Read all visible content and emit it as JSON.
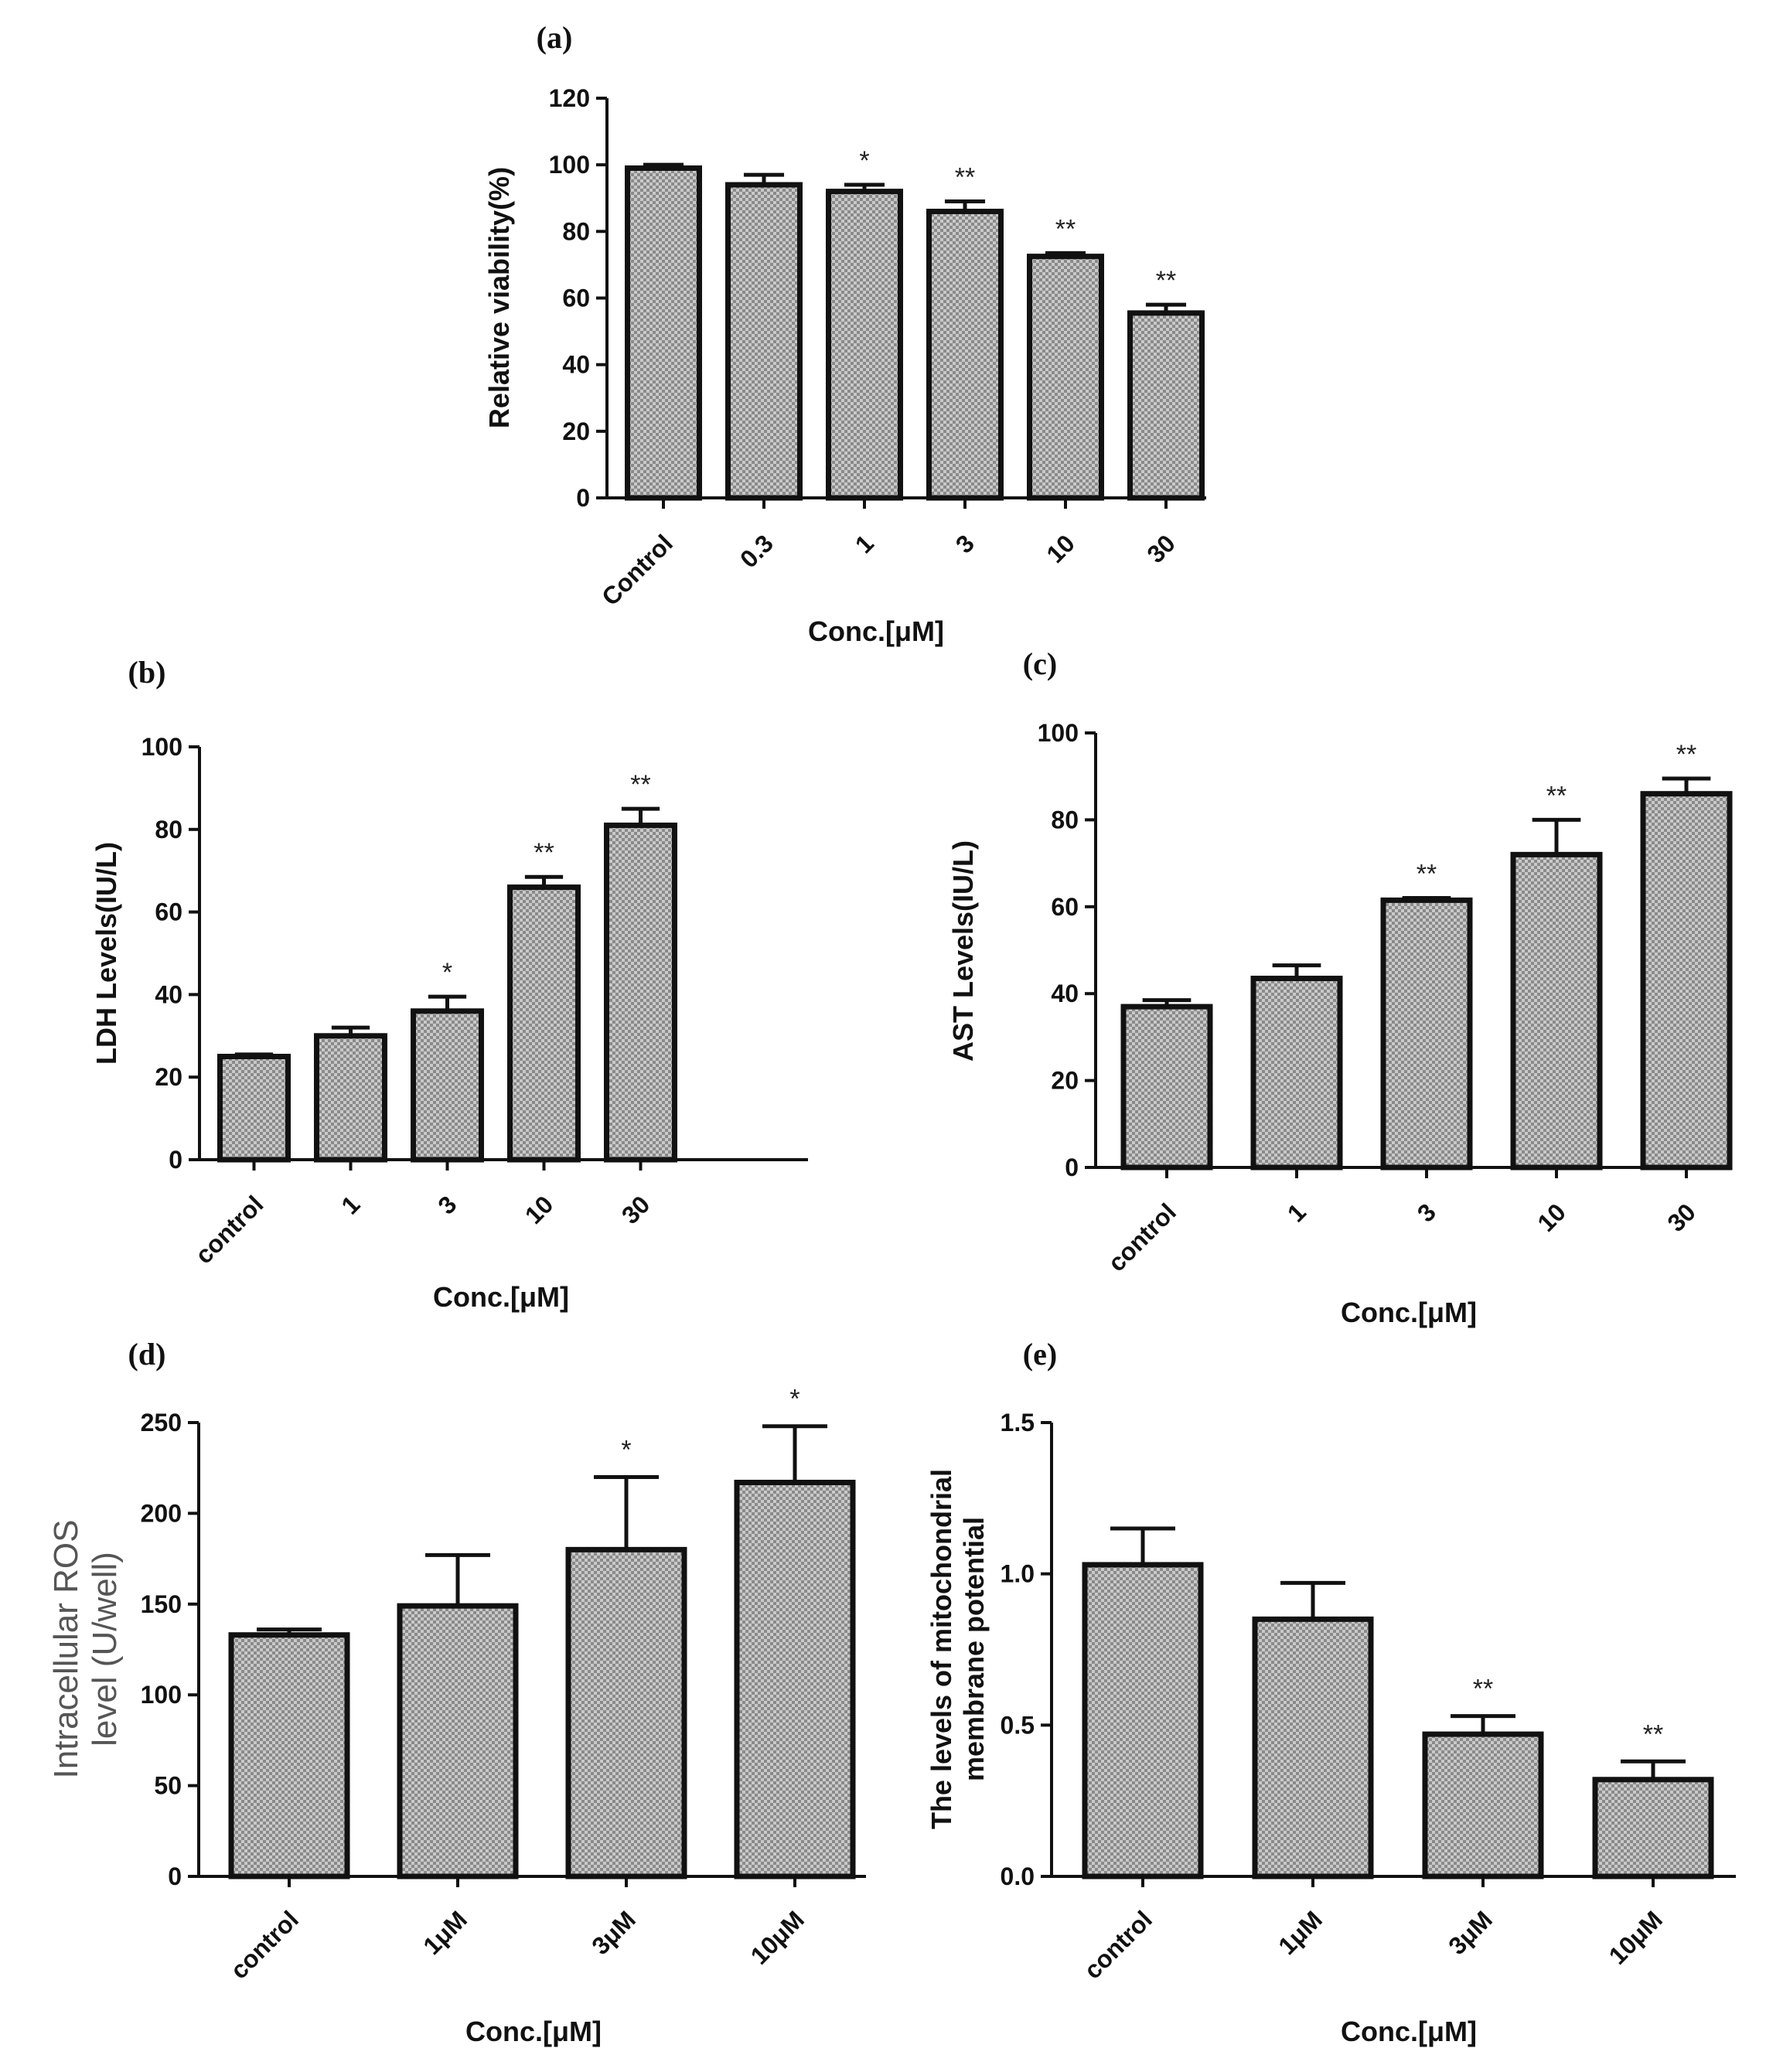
{
  "chart_data": [
    {
      "type": "bar",
      "panel": "(a)",
      "categories": [
        "Control",
        "0.3",
        "1",
        "3",
        "10",
        "30"
      ],
      "values": [
        99,
        94,
        92,
        86,
        72.5,
        55.5
      ],
      "errors": [
        1,
        3,
        2,
        3,
        1,
        2.5
      ],
      "significance": [
        "",
        "",
        "*",
        "**",
        "**",
        "**"
      ],
      "ylabel": [
        "Relative viability(%)"
      ],
      "xlabel": "Conc.[μM]",
      "ylim": [
        0,
        120
      ],
      "yticks": [
        0,
        20,
        40,
        60,
        80,
        100,
        120
      ]
    },
    {
      "type": "bar",
      "panel": "(b)",
      "categories": [
        "control",
        "1",
        "3",
        "10",
        "30"
      ],
      "values": [
        25,
        30,
        36,
        66,
        81
      ],
      "errors": [
        0.5,
        2,
        3.5,
        2.5,
        4
      ],
      "significance": [
        "",
        "",
        "*",
        "**",
        "**"
      ],
      "ylabel": [
        "LDH   Levels(IU/L)"
      ],
      "xlabel": "Conc.[μM]",
      "ylim": [
        0,
        100
      ],
      "yticks": [
        0,
        20,
        40,
        60,
        80,
        100
      ]
    },
    {
      "type": "bar",
      "panel": "(c)",
      "categories": [
        "control",
        "1",
        "3",
        "10",
        "30"
      ],
      "values": [
        37,
        43.5,
        61.5,
        72,
        86
      ],
      "errors": [
        1.5,
        3,
        0.5,
        8,
        3.5
      ],
      "significance": [
        "",
        "",
        "**",
        "**",
        "**"
      ],
      "ylabel": [
        "AST   Levels(IU/L)"
      ],
      "xlabel": "Conc.[μM]",
      "ylim": [
        0,
        100
      ],
      "yticks": [
        0,
        20,
        40,
        60,
        80,
        100
      ]
    },
    {
      "type": "bar",
      "panel": "(d)",
      "categories": [
        "control",
        "1μM",
        "3μM",
        "10μM"
      ],
      "values": [
        133,
        149,
        180,
        217
      ],
      "errors": [
        3,
        28,
        40,
        31
      ],
      "significance": [
        "",
        "",
        "*",
        "*"
      ],
      "ylabel": [
        "Intracellular ROS",
        "level (U/well)"
      ],
      "xlabel": "Conc.[μM]",
      "ylim": [
        0,
        250
      ],
      "yticks": [
        0,
        50,
        100,
        150,
        200,
        250
      ]
    },
    {
      "type": "bar",
      "panel": "(e)",
      "categories": [
        "control",
        "1μM",
        "3μM",
        "10μM"
      ],
      "values": [
        1.03,
        0.85,
        0.47,
        0.32
      ],
      "errors": [
        0.12,
        0.12,
        0.06,
        0.06
      ],
      "significance": [
        "",
        "",
        "**",
        "**"
      ],
      "ylabel": [
        "The levels of mitochondrial",
        "membrane potential"
      ],
      "xlabel": "Conc.[μM]",
      "ylim": [
        0,
        1.5
      ],
      "yticks": [
        "0.0",
        "0.5",
        "1.0",
        "1.5"
      ]
    }
  ]
}
